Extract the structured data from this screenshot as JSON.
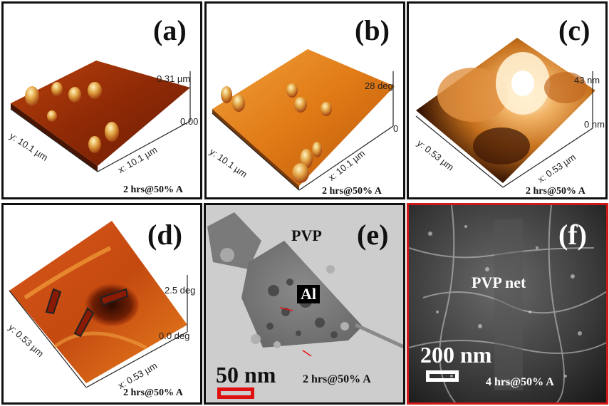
{
  "colors": {
    "panel_border": "#111111",
    "highlight_border": "#d01818",
    "scale_bar": "#e01010"
  },
  "panels": {
    "a": {
      "label": "(a)",
      "z_top": "0.31 µm",
      "z_bottom": "0.00",
      "x_axis": "x: 10.1 µm",
      "y_axis": "y: 10.1 µm",
      "condition": "2 hrs@50% A"
    },
    "b": {
      "label": "(b)",
      "z_top": "28 deg",
      "z_bottom": "0",
      "x_axis": "x: 10.1 µm",
      "y_axis": "y: 10.1 µm",
      "condition": "2 hrs@50% A"
    },
    "c": {
      "label": "(c)",
      "z_top": "43 nm",
      "z_bottom": "0 nm",
      "x_axis": "x: 0.53 µm",
      "y_axis": "y: 0.53 µm",
      "condition": "2 hrs@50% A"
    },
    "d": {
      "label": "(d)",
      "z_top": "2.5 deg",
      "z_bottom": "0.0 deg",
      "x_axis": "x: 0.53 µm",
      "y_axis": "y: 0.53 µm",
      "condition": "2 hrs@50% A"
    },
    "e": {
      "label": "(e)",
      "material": "PVP",
      "particle": "Al",
      "scale": "50 nm",
      "condition": "2 hrs@50% A"
    },
    "f": {
      "label": "(f)",
      "material": "PVP net",
      "scale": "200 nm",
      "condition": "4 hrs@50% A"
    }
  }
}
